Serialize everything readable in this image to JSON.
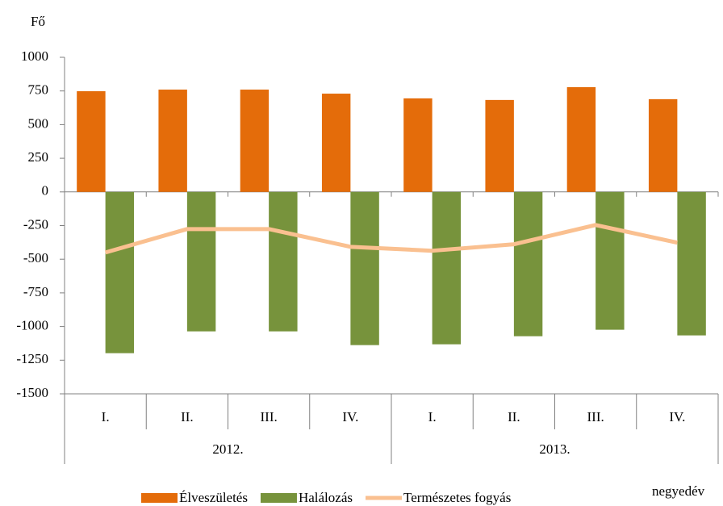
{
  "chart_data": {
    "type": "bar",
    "y_label": "Fő",
    "x_label": "negyedév",
    "categories": [
      "I.",
      "II.",
      "III.",
      "IV.",
      "I.",
      "II.",
      "III.",
      "IV."
    ],
    "years": [
      "2012.",
      "2013."
    ],
    "series": [
      {
        "name": "Élveszületés",
        "type": "bar",
        "color": "#e46c0a",
        "values": [
          748,
          760,
          760,
          730,
          695,
          683,
          778,
          689
        ]
      },
      {
        "name": "Halálozás",
        "type": "bar",
        "color": "#77933c",
        "values": [
          -1198,
          -1036,
          -1036,
          -1138,
          -1132,
          -1072,
          -1024,
          -1066
        ]
      },
      {
        "name": "Természetes fogyás",
        "type": "line",
        "color": "#fac090",
        "values": [
          -450,
          -276,
          -276,
          -408,
          -437,
          -389,
          -246,
          -377
        ]
      }
    ],
    "ylim": [
      -1500,
      1000
    ],
    "yticks": [
      -1500,
      -1250,
      -1000,
      -750,
      -500,
      -250,
      0,
      250,
      500,
      750,
      1000
    ],
    "legend": "bottom"
  }
}
